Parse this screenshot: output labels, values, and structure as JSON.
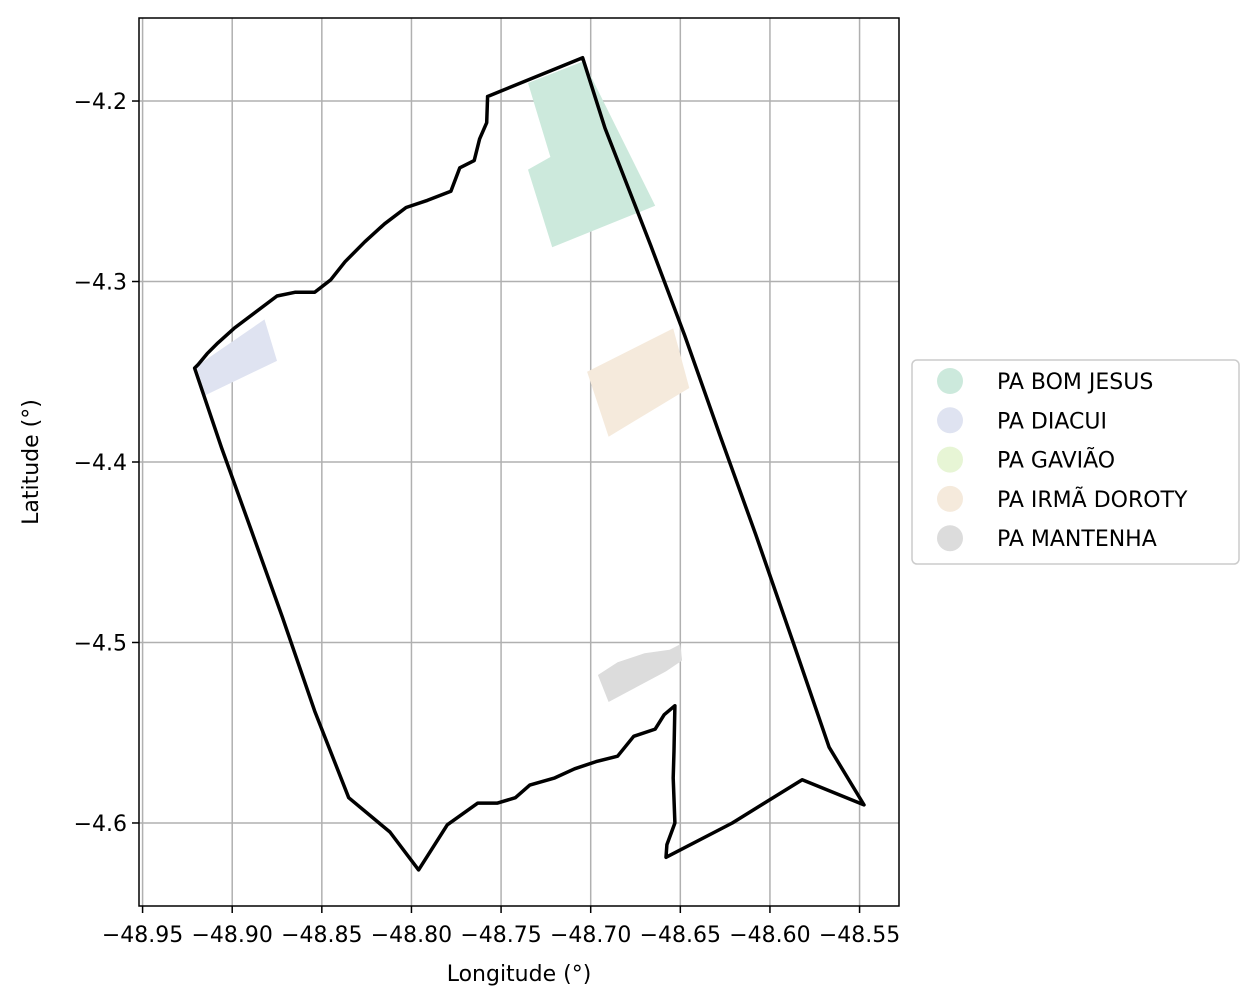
{
  "chart_data": {
    "type": "map",
    "xlabel": "Longitude (°)",
    "ylabel": "Latitude (°)",
    "xlim": [
      -48.952,
      -48.528
    ],
    "ylim": [
      -4.646,
      -4.154
    ],
    "grid": true,
    "legend_placement": "right, outside plot",
    "x_ticks": [
      {
        "value": -48.95,
        "label": "−48.95"
      },
      {
        "value": -48.9,
        "label": "−48.90"
      },
      {
        "value": -48.85,
        "label": "−48.85"
      },
      {
        "value": -48.8,
        "label": "−48.80"
      },
      {
        "value": -48.75,
        "label": "−48.75"
      },
      {
        "value": -48.7,
        "label": "−48.70"
      },
      {
        "value": -48.65,
        "label": "−48.65"
      },
      {
        "value": -48.6,
        "label": "−48.60"
      },
      {
        "value": -48.55,
        "label": "−48.55"
      }
    ],
    "y_ticks": [
      {
        "value": -4.2,
        "label": "−4.2"
      },
      {
        "value": -4.3,
        "label": "−4.3"
      },
      {
        "value": -4.4,
        "label": "−4.4"
      },
      {
        "value": -4.5,
        "label": "−4.5"
      },
      {
        "value": -4.6,
        "label": "−4.6"
      }
    ],
    "boundary": {
      "color": "#000000",
      "coordinates": [
        [
          -48.7575,
          -4.1975
        ],
        [
          -48.7045,
          -4.176
        ],
        [
          -48.692,
          -4.215
        ],
        [
          -48.6665,
          -4.28
        ],
        [
          -48.6475,
          -4.33
        ],
        [
          -48.628,
          -4.385
        ],
        [
          -48.608,
          -4.44
        ],
        [
          -48.587,
          -4.5
        ],
        [
          -48.567,
          -4.558
        ],
        [
          -48.5475,
          -4.59
        ],
        [
          -48.582,
          -4.576
        ],
        [
          -48.621,
          -4.6
        ],
        [
          -48.658,
          -4.619
        ],
        [
          -48.6575,
          -4.612
        ],
        [
          -48.653,
          -4.6
        ],
        [
          -48.654,
          -4.575
        ],
        [
          -48.6535,
          -4.56
        ],
        [
          -48.653,
          -4.535
        ],
        [
          -48.659,
          -4.54
        ],
        [
          -48.664,
          -4.548
        ],
        [
          -48.676,
          -4.552
        ],
        [
          -48.685,
          -4.563
        ],
        [
          -48.697,
          -4.566
        ],
        [
          -48.709,
          -4.57
        ],
        [
          -48.72,
          -4.575
        ],
        [
          -48.734,
          -4.579
        ],
        [
          -48.742,
          -4.586
        ],
        [
          -48.752,
          -4.589
        ],
        [
          -48.763,
          -4.589
        ],
        [
          -48.78,
          -4.601
        ],
        [
          -48.796,
          -4.626
        ],
        [
          -48.812,
          -4.605
        ],
        [
          -48.835,
          -4.586
        ],
        [
          -48.854,
          -4.538
        ],
        [
          -48.872,
          -4.486
        ],
        [
          -48.89,
          -4.436
        ],
        [
          -48.906,
          -4.392
        ],
        [
          -48.921,
          -4.348
        ],
        [
          -48.919,
          -4.346
        ],
        [
          -48.914,
          -4.34
        ],
        [
          -48.908,
          -4.334
        ],
        [
          -48.899,
          -4.326
        ],
        [
          -48.875,
          -4.308
        ],
        [
          -48.865,
          -4.306
        ],
        [
          -48.854,
          -4.306
        ],
        [
          -48.845,
          -4.299
        ],
        [
          -48.837,
          -4.289
        ],
        [
          -48.826,
          -4.278
        ],
        [
          -48.815,
          -4.268
        ],
        [
          -48.803,
          -4.259
        ],
        [
          -48.791,
          -4.255
        ],
        [
          -48.778,
          -4.25
        ],
        [
          -48.773,
          -4.237
        ],
        [
          -48.765,
          -4.233
        ],
        [
          -48.762,
          -4.221
        ],
        [
          -48.758,
          -4.212
        ],
        [
          -48.7575,
          -4.1975
        ]
      ]
    },
    "series": [
      {
        "name": "PA BOM JESUS",
        "color": "#cce9dc",
        "polygons": [
          [
            [
              -48.735,
              -4.19
            ],
            [
              -48.704,
              -4.178
            ],
            [
              -48.664,
              -4.258
            ],
            [
              -48.7215,
              -4.281
            ],
            [
              -48.735,
              -4.238
            ],
            [
              -48.7225,
              -4.231
            ]
          ]
        ]
      },
      {
        "name": "PA DIACUI",
        "color": "#dfe3f1",
        "polygons": [
          [
            [
              -48.92,
              -4.347
            ],
            [
              -48.882,
              -4.321
            ],
            [
              -48.875,
              -4.344
            ],
            [
              -48.915,
              -4.363
            ]
          ]
        ]
      },
      {
        "name": "PA GAVIÃO",
        "color": "#e7f5d5",
        "polygons": []
      },
      {
        "name": "PA IRMÃ DOROTY",
        "color": "#f5eadc",
        "polygons": [
          [
            [
              -48.702,
              -4.35
            ],
            [
              -48.654,
              -4.326
            ],
            [
              -48.645,
              -4.359
            ],
            [
              -48.69,
              -4.386
            ]
          ]
        ]
      },
      {
        "name": "PA MANTENHA",
        "color": "#dcdcdc",
        "polygons": [
          [
            [
              -48.696,
              -4.518
            ],
            [
              -48.685,
              -4.511
            ],
            [
              -48.67,
              -4.506
            ],
            [
              -48.656,
              -4.504
            ],
            [
              -48.65,
              -4.501
            ],
            [
              -48.649,
              -4.51
            ],
            [
              -48.658,
              -4.516
            ],
            [
              -48.69,
              -4.533
            ]
          ]
        ]
      }
    ]
  }
}
